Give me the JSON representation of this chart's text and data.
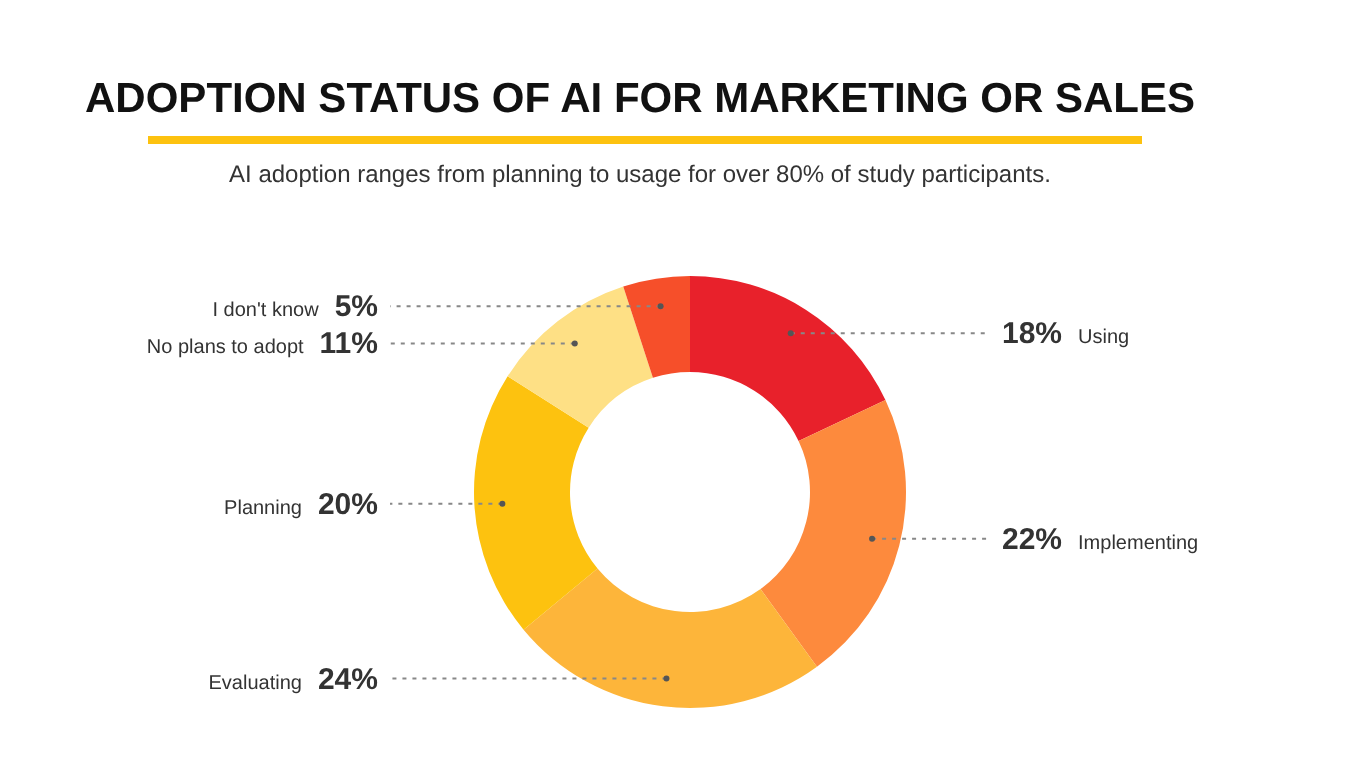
{
  "chart_data": {
    "type": "donut",
    "title": "ADOPTION STATUS OF AI FOR MARKETING OR SALES",
    "subtitle": "AI adoption ranges from planning to usage for over 80% of study participants.",
    "categories": [
      "Using",
      "Implementing",
      "Evaluating",
      "Planning",
      "No plans to adopt",
      "I don't know"
    ],
    "values": [
      18,
      22,
      24,
      20,
      11,
      5
    ],
    "value_labels": [
      "18%",
      "22%",
      "24%",
      "20%",
      "11%",
      "5%"
    ],
    "colors": [
      "#e8212b",
      "#fd8a3d",
      "#fdb53a",
      "#fdc20f",
      "#fee085",
      "#f64f2a"
    ]
  }
}
